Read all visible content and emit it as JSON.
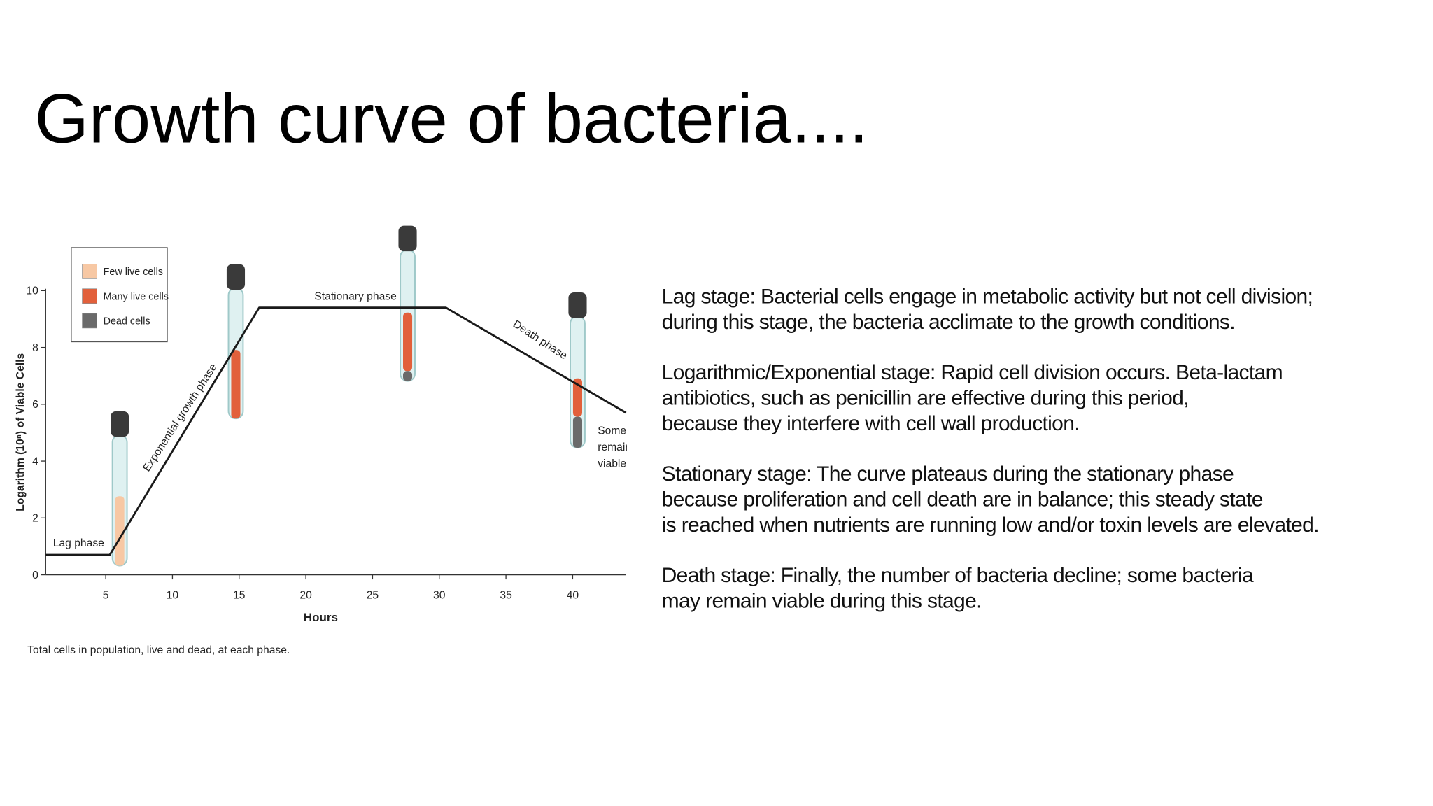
{
  "title": "Growth curve of bacteria....",
  "chart_data": {
    "type": "line",
    "x": [
      0.5,
      5.3,
      16.5,
      30.5,
      44
    ],
    "series": [
      {
        "color": "#1a1a1a",
        "values": [
          0.7,
          0.7,
          9.4,
          9.4,
          5.7
        ]
      }
    ],
    "xlim": [
      0.5,
      44
    ],
    "ylim": [
      0,
      10
    ],
    "xticks": [
      5,
      10,
      15,
      20,
      25,
      30,
      35,
      40
    ],
    "yticks": [
      0,
      2,
      4,
      6,
      8,
      10
    ],
    "x_label": "Hours",
    "y_label": "Logarithm (10ⁿ) of Viable Cells",
    "legend": [
      {
        "label": "Few live cells",
        "color": "#f7c8a4"
      },
      {
        "label": "Many live cells",
        "color": "#e2603b"
      },
      {
        "label": "Dead cells",
        "color": "#6a6a6a"
      }
    ],
    "annotations": [
      "Lag phase",
      "Exponential growth phase",
      "Stationary phase",
      "Death phase"
    ],
    "side_note": [
      "Some",
      "remain",
      "viable."
    ],
    "caption": "Total cells in population, live and dead, at each phase."
  },
  "paragraphs": [
    {
      "lines": [
        "Lag stage: Bacterial cells engage in metabolic activity but not cell division;",
        "during this stage, the bacteria acclimate to the growth conditions."
      ]
    },
    {
      "lines": [
        "Logarithmic/Exponential stage: Rapid cell division occurs. Beta-lactam",
        "antibiotics, such as penicillin are effective during this period,",
        "because they interfere with cell wall production."
      ]
    },
    {
      "lines": [
        "Stationary stage: The curve plateaus during the stationary phase",
        "because proliferation and cell death are in balance; this steady state",
        "is reached when nutrients are running low and/or toxin levels are elevated."
      ]
    },
    {
      "lines": [
        "Death stage: Finally, the number of bacteria decline; some bacteria",
        "may remain viable during this stage."
      ]
    }
  ]
}
